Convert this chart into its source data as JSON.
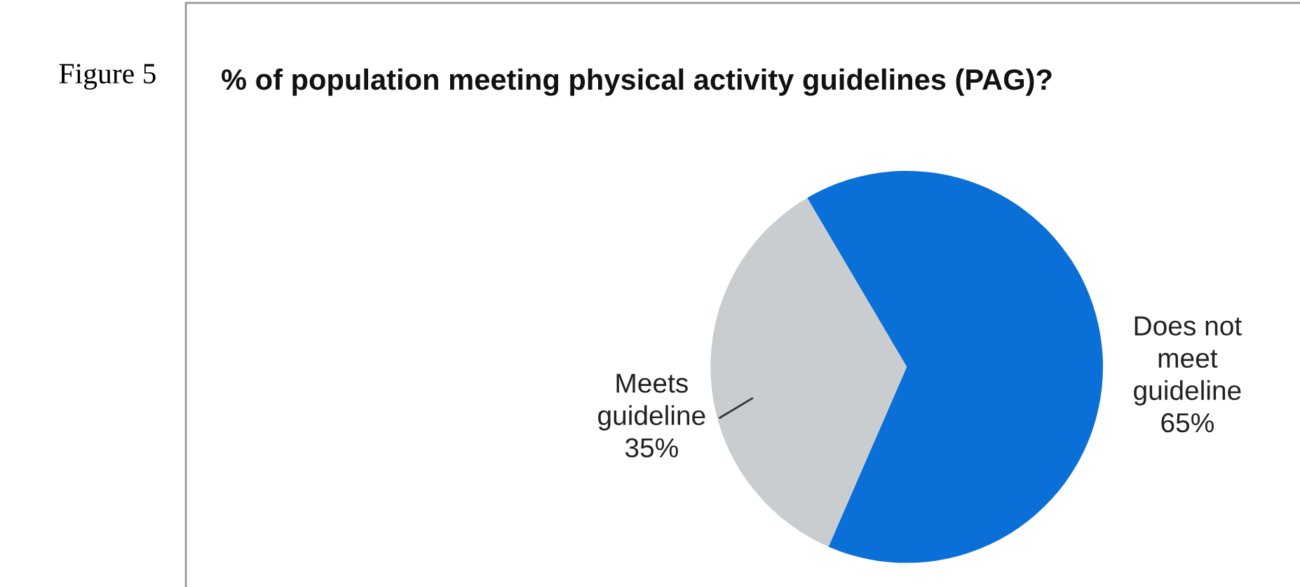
{
  "chart_data": {
    "type": "pie",
    "title": "% of population meeting physical activity guidelines (PAG)?",
    "categories": [
      "Does not meet guideline",
      "Meets guideline"
    ],
    "values": [
      65,
      35
    ],
    "value_labels": [
      "65%",
      "35%"
    ],
    "colors": [
      "#0a6fd6",
      "#c9cdd0"
    ],
    "annotations": [
      "Figure 5"
    ],
    "legend": false
  }
}
